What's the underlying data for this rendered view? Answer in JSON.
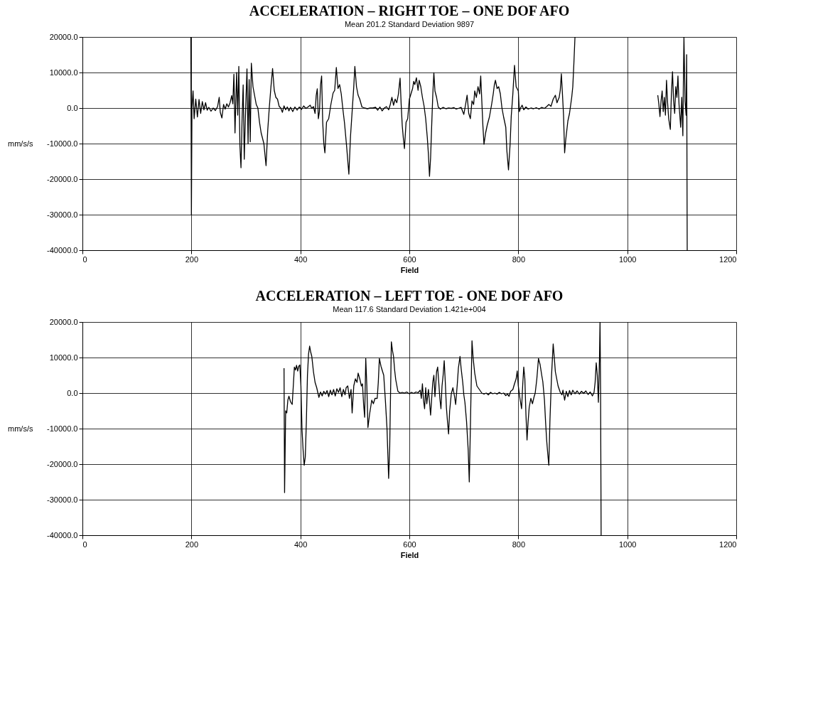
{
  "chart_data": [
    {
      "type": "line",
      "title": "ACCELERATION – RIGHT TOE – ONE DOF AFO",
      "subtitle": "Mean 201.2     Standard Deviation 9897",
      "xlabel": "Field",
      "ylabel": "mm/s/s",
      "xlim": [
        0,
        1200
      ],
      "xticks": [
        0,
        200,
        400,
        600,
        800,
        1000,
        1200
      ],
      "ylim": [
        -40000,
        20000
      ],
      "yticks": [
        {
          "value": -40000,
          "label": "-40000.0"
        },
        {
          "value": -30000,
          "label": "-30000.0"
        },
        {
          "value": -20000,
          "label": "-20000.0"
        },
        {
          "value": -10000,
          "label": "-10000.0"
        },
        {
          "value": 0,
          "label": "0.0"
        },
        {
          "value": 10000,
          "label": "10000.0"
        },
        {
          "value": 20000,
          "label": "20000.0"
        }
      ],
      "grid": true,
      "legend": false,
      "marker": "none",
      "line_style": "solid",
      "series": [
        {
          "color": "#000000",
          "x": [
            199,
            200,
            201,
            203,
            205,
            208,
            211,
            214,
            217,
            220,
            223,
            226,
            229,
            232,
            236,
            240,
            244,
            248,
            251,
            253,
            256,
            259,
            262,
            265,
            268,
            271,
            274,
            276,
            278,
            280,
            283,
            285,
            287,
            289,
            291,
            293,
            295,
            297,
            299,
            302,
            304,
            306,
            308,
            310,
            313,
            316,
            319,
            322,
            325,
            328,
            333,
            337,
            340,
            343,
            346,
            349,
            352,
            355,
            358,
            361,
            364,
            367,
            370,
            373,
            376,
            379,
            382,
            386,
            390,
            394,
            398,
            402,
            406,
            410,
            414,
            418,
            421,
            424,
            427,
            429,
            431,
            433,
            435,
            437,
            439,
            441,
            443,
            445,
            448,
            452,
            456,
            460,
            463,
            466,
            469,
            472,
            475,
            478,
            481,
            485,
            489,
            492,
            495,
            498,
            500,
            503,
            506,
            509,
            513,
            518,
            523,
            528,
            533,
            538,
            542,
            546,
            550,
            554,
            558,
            562,
            565,
            568,
            571,
            574,
            577,
            580,
            582,
            583,
            585,
            587,
            589,
            591,
            594,
            597,
            600,
            603,
            606,
            608,
            610,
            613,
            616,
            618,
            621,
            624,
            627,
            630,
            633,
            635,
            637,
            639,
            641,
            643,
            645,
            647,
            650,
            653,
            657,
            662,
            667,
            672,
            677,
            682,
            686,
            690,
            695,
            700,
            703,
            706,
            709,
            712,
            715,
            718,
            720,
            723,
            726,
            729,
            731,
            733,
            735,
            737,
            740,
            743,
            747,
            751,
            754,
            756,
            758,
            761,
            764,
            767,
            770,
            773,
            777,
            779,
            782,
            785,
            787,
            790,
            793,
            796,
            800,
            802,
            804,
            807,
            810,
            814,
            818,
            823,
            828,
            833,
            838,
            843,
            848,
            852,
            856,
            860,
            864,
            868,
            871,
            875,
            877,
            879,
            881,
            883,
            885,
            887,
            891,
            894,
            898,
            900,
            902,
            904,
            980,
            1056,
            1058,
            1060,
            1062,
            1064,
            1066,
            1068,
            1070,
            1072,
            1074,
            1076,
            1079,
            1081,
            1083,
            1085,
            1087,
            1089,
            1091,
            1093,
            1095,
            1098,
            1100,
            1102,
            1103,
            1104,
            1106,
            1108,
            1109,
            1110
          ],
          "values": [
            20000,
            -30000,
            0,
            4800,
            -3000,
            2500,
            -2500,
            2400,
            -1500,
            1800,
            -500,
            1500,
            -600,
            200,
            -900,
            0,
            -700,
            400,
            3000,
            -1200,
            -2800,
            1000,
            -300,
            1200,
            300,
            1500,
            3500,
            1200,
            9500,
            -7000,
            10000,
            -2000,
            11700,
            -10500,
            -16800,
            -3000,
            6500,
            -14400,
            -3000,
            11000,
            -10000,
            8000,
            -9500,
            12600,
            6000,
            3500,
            1000,
            0,
            -4000,
            -7000,
            -10000,
            -16200,
            -6500,
            200,
            6000,
            11100,
            5000,
            3000,
            2500,
            500,
            0,
            -1200,
            600,
            -500,
            300,
            -800,
            200,
            -1000,
            300,
            -600,
            300,
            -400,
            600,
            -100,
            300,
            800,
            -100,
            400,
            -1500,
            3500,
            5400,
            -3000,
            -1000,
            6500,
            9000,
            -4000,
            -10000,
            -12600,
            -4000,
            -3000,
            1000,
            4200,
            5000,
            11400,
            5500,
            6600,
            4000,
            -300,
            -4200,
            -11000,
            -18600,
            -8000,
            -1000,
            6000,
            11700,
            6000,
            3600,
            2500,
            300,
            0,
            -200,
            0,
            0,
            200,
            -600,
            300,
            -800,
            0,
            400,
            -500,
            1000,
            3000,
            800,
            2500,
            1500,
            4000,
            7000,
            8400,
            1000,
            -5000,
            -8500,
            -11400,
            -4000,
            -3000,
            2500,
            4000,
            5500,
            7500,
            6600,
            8500,
            5000,
            7800,
            6000,
            3000,
            600,
            -3000,
            -8400,
            -13000,
            -19200,
            -14000,
            -5000,
            3600,
            9900,
            4800,
            3000,
            300,
            -300,
            200,
            -200,
            0,
            -100,
            100,
            -300,
            -100,
            200,
            -1800,
            800,
            3600,
            -1500,
            -3000,
            2000,
            1000,
            4800,
            3000,
            6000,
            4000,
            9000,
            2000,
            -5000,
            -10200,
            -7000,
            -4800,
            -2500,
            1000,
            4000,
            6500,
            7800,
            5500,
            6000,
            4000,
            0,
            -2500,
            -5400,
            -12000,
            -17400,
            -10000,
            -2400,
            4000,
            12000,
            6000,
            4800,
            -1000,
            0,
            800,
            -500,
            300,
            -300,
            0,
            -200,
            100,
            -300,
            200,
            -100,
            400,
            1000,
            500,
            2500,
            3600,
            1500,
            3000,
            5000,
            9600,
            4000,
            -2000,
            -12600,
            -9000,
            -3600,
            -1500,
            3000,
            6000,
            12600,
            20000,
            null,
            3600,
            1000,
            -2400,
            2000,
            4800,
            -1000,
            3000,
            -2000,
            7800,
            1500,
            -3000,
            -6000,
            4000,
            10200,
            2000,
            -1500,
            6000,
            3000,
            9000,
            1000,
            -5400,
            3000,
            -7800,
            8000,
            20000,
            2000,
            -2000,
            15000,
            -40000
          ]
        }
      ]
    },
    {
      "type": "line",
      "title": "ACCELERATION – LEFT TOE - ONE DOF AFO",
      "subtitle": "Mean 117.6     Standard Deviation 1.421e+004",
      "xlabel": "Field",
      "ylabel": "mm/s/s",
      "xlim": [
        0,
        1200
      ],
      "xticks": [
        0,
        200,
        400,
        600,
        800,
        1000,
        1200
      ],
      "ylim": [
        -40000,
        20000
      ],
      "yticks": [
        {
          "value": -40000,
          "label": "-40000.0"
        },
        {
          "value": -30000,
          "label": "-30000.0"
        },
        {
          "value": -20000,
          "label": "-20000.0"
        },
        {
          "value": -10000,
          "label": "-10000.0"
        },
        {
          "value": 0,
          "label": "0.0"
        },
        {
          "value": 10000,
          "label": "10000.0"
        },
        {
          "value": 20000,
          "label": "20000.0"
        }
      ],
      "grid": true,
      "legend": false,
      "marker": "none",
      "line_style": "solid",
      "series": [
        {
          "color": "#000000",
          "x": [
            370,
            371,
            373,
            375,
            377,
            379,
            382,
            385,
            387,
            389,
            391,
            393,
            395,
            397,
            399,
            401,
            403,
            405,
            407,
            409,
            411,
            413,
            415,
            417,
            419,
            421,
            424,
            427,
            430,
            434,
            437,
            440,
            443,
            446,
            449,
            452,
            455,
            458,
            461,
            464,
            467,
            470,
            473,
            476,
            479,
            482,
            484,
            487,
            490,
            493,
            495,
            498,
            501,
            504,
            506,
            509,
            512,
            514,
            516,
            518,
            520,
            522,
            524,
            527,
            529,
            531,
            534,
            537,
            541,
            543,
            545,
            548,
            551,
            553,
            556,
            559,
            562,
            564,
            567,
            569,
            571,
            573,
            575,
            579,
            583,
            587,
            591,
            595,
            600,
            604,
            608,
            612,
            616,
            620,
            622,
            624,
            626,
            628,
            630,
            632,
            635,
            637,
            639,
            641,
            643,
            645,
            647,
            650,
            652,
            654,
            656,
            658,
            660,
            662,
            664,
            666,
            668,
            670,
            672,
            674,
            677,
            680,
            683,
            685,
            688,
            690,
            693,
            695,
            698,
            700,
            702,
            705,
            708,
            710,
            712,
            715,
            717,
            720,
            724,
            729,
            733,
            737,
            741,
            745,
            749,
            753,
            757,
            761,
            765,
            769,
            773,
            777,
            780,
            783,
            786,
            790,
            793,
            796,
            798,
            800,
            803,
            806,
            808,
            810,
            812,
            814,
            816,
            818,
            820,
            823,
            826,
            829,
            831,
            834,
            837,
            840,
            843,
            845,
            848,
            850,
            852,
            854,
            856,
            858,
            861,
            864,
            866,
            868,
            870,
            873,
            877,
            880,
            882,
            885,
            888,
            891,
            894,
            897,
            900,
            904,
            908,
            912,
            916,
            920,
            924,
            928,
            932,
            936,
            939,
            941,
            943,
            945,
            947,
            949,
            950,
            951,
            952
          ],
          "values": [
            7000,
            -28000,
            -5000,
            -5600,
            -2000,
            -900,
            -2500,
            -3200,
            2000,
            7300,
            6500,
            7800,
            6200,
            7500,
            7900,
            2000,
            -10300,
            -16000,
            -20300,
            -18000,
            -8000,
            5000,
            11000,
            13200,
            11500,
            10300,
            6000,
            3000,
            1500,
            -1200,
            300,
            -800,
            500,
            -300,
            700,
            -1000,
            800,
            -500,
            1000,
            -800,
            1200,
            200,
            1500,
            -1000,
            1000,
            -500,
            1500,
            2000,
            -1500,
            1000,
            -5600,
            2000,
            4000,
            3000,
            5600,
            4000,
            2000,
            2600,
            -3000,
            -6800,
            9700,
            2000,
            -9700,
            -6000,
            -4000,
            -2000,
            -3000,
            -1500,
            -1500,
            3000,
            9700,
            7500,
            6000,
            5000,
            -2000,
            -10000,
            -24000,
            -15000,
            14400,
            12000,
            10300,
            6500,
            3800,
            500,
            0,
            200,
            0,
            300,
            -200,
            200,
            -100,
            300,
            100,
            800,
            -1500,
            2600,
            -2000,
            -4400,
            1500,
            -3000,
            1000,
            -2500,
            -6200,
            -1500,
            3000,
            5000,
            -1000,
            6000,
            7300,
            3000,
            -1500,
            -4400,
            2000,
            5000,
            9100,
            3000,
            -4000,
            -8000,
            -11500,
            -5000,
            -200,
            1500,
            -1000,
            -3200,
            2500,
            7000,
            10300,
            7000,
            3000,
            -500,
            -2600,
            -8000,
            -16000,
            -25000,
            -10000,
            14700,
            10000,
            5600,
            2000,
            900,
            0,
            -300,
            0,
            -500,
            200,
            -200,
            0,
            -300,
            200,
            -200,
            0,
            -700,
            -300,
            -900,
            500,
            1000,
            2600,
            4000,
            6200,
            2000,
            -1500,
            -4400,
            2000,
            7300,
            4000,
            -6000,
            -13200,
            -8000,
            -4000,
            -1500,
            -3000,
            -1000,
            0,
            4000,
            9700,
            8000,
            5000,
            3200,
            -2000,
            -8000,
            -13200,
            -17000,
            -20300,
            -8000,
            5000,
            13800,
            10000,
            6000,
            4400,
            2000,
            200,
            -500,
            800,
            -2000,
            500,
            -1000,
            700,
            -500,
            800,
            -200,
            600,
            -300,
            500,
            -100,
            600,
            -400,
            300,
            -800,
            200,
            3000,
            8500,
            5000,
            -2600,
            10000,
            20000,
            0,
            -40000
          ]
        }
      ]
    }
  ]
}
